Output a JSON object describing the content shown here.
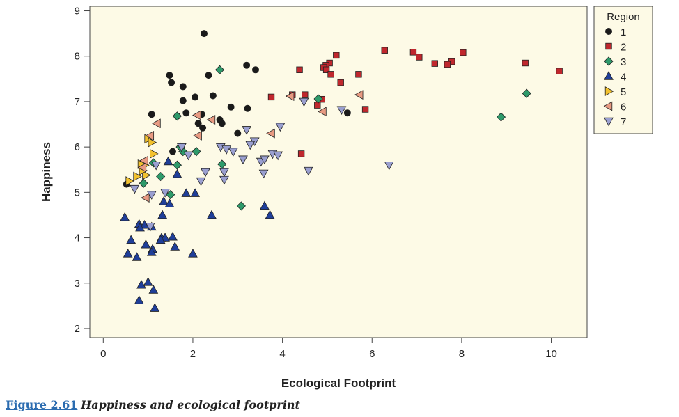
{
  "chart_data": {
    "type": "scatter",
    "title": "",
    "xlabel": "Ecological Footprint",
    "ylabel": "Happiness",
    "xlim": [
      -0.3,
      10.8
    ],
    "ylim": [
      1.8,
      9.1
    ],
    "xticks": [
      0,
      2,
      4,
      6,
      8,
      10
    ],
    "yticks": [
      2,
      3,
      4,
      5,
      6,
      7,
      8,
      9
    ],
    "legend": {
      "title": "Region",
      "position": "top-right outside"
    },
    "series": [
      {
        "name": "1",
        "marker": "circle",
        "color": "#1a1a1a",
        "points": [
          [
            2.25,
            8.5
          ],
          [
            3.2,
            7.8
          ],
          [
            3.4,
            7.7
          ],
          [
            1.48,
            7.58
          ],
          [
            2.35,
            7.58
          ],
          [
            1.52,
            7.42
          ],
          [
            1.78,
            7.33
          ],
          [
            2.05,
            7.1
          ],
          [
            2.45,
            7.13
          ],
          [
            1.78,
            7.02
          ],
          [
            1.08,
            6.72
          ],
          [
            1.85,
            6.75
          ],
          [
            2.2,
            6.72
          ],
          [
            1.65,
            6.68
          ],
          [
            2.85,
            6.88
          ],
          [
            3.22,
            6.85
          ],
          [
            5.45,
            6.75
          ],
          [
            2.12,
            6.52
          ],
          [
            2.6,
            6.6
          ],
          [
            2.65,
            6.52
          ],
          [
            2.22,
            6.42
          ],
          [
            3.0,
            6.3
          ],
          [
            1.55,
            5.9
          ],
          [
            0.52,
            5.18
          ]
        ]
      },
      {
        "name": "2",
        "marker": "square",
        "color": "#c0272d",
        "points": [
          [
            6.28,
            8.13
          ],
          [
            6.92,
            8.09
          ],
          [
            7.05,
            7.98
          ],
          [
            8.03,
            8.08
          ],
          [
            7.78,
            7.88
          ],
          [
            7.4,
            7.84
          ],
          [
            7.68,
            7.82
          ],
          [
            5.2,
            8.02
          ],
          [
            5.05,
            7.85
          ],
          [
            4.97,
            7.8
          ],
          [
            4.92,
            7.75
          ],
          [
            4.98,
            7.7
          ],
          [
            5.08,
            7.6
          ],
          [
            5.7,
            7.6
          ],
          [
            4.38,
            7.7
          ],
          [
            5.3,
            7.42
          ],
          [
            9.42,
            7.85
          ],
          [
            10.18,
            7.67
          ],
          [
            3.75,
            7.1
          ],
          [
            4.22,
            7.15
          ],
          [
            4.5,
            7.15
          ],
          [
            4.88,
            7.05
          ],
          [
            4.78,
            6.92
          ],
          [
            5.85,
            6.83
          ],
          [
            4.42,
            5.85
          ]
        ]
      },
      {
        "name": "3",
        "marker": "diamond",
        "color": "#2e9a6a",
        "points": [
          [
            2.6,
            7.7
          ],
          [
            4.8,
            7.06
          ],
          [
            9.45,
            7.18
          ],
          [
            8.88,
            6.66
          ],
          [
            1.65,
            6.68
          ],
          [
            1.72,
            6.0
          ],
          [
            1.78,
            5.9
          ],
          [
            2.08,
            5.9
          ],
          [
            1.12,
            5.65
          ],
          [
            1.65,
            5.6
          ],
          [
            2.65,
            5.62
          ],
          [
            1.28,
            5.35
          ],
          [
            0.9,
            5.2
          ],
          [
            1.5,
            4.95
          ],
          [
            3.08,
            4.7
          ]
        ]
      },
      {
        "name": "4",
        "marker": "triangle-up",
        "color": "#1f3e99",
        "points": [
          [
            0.48,
            4.45
          ],
          [
            0.8,
            4.3
          ],
          [
            0.92,
            4.28
          ],
          [
            0.82,
            4.22
          ],
          [
            1.08,
            4.24
          ],
          [
            0.62,
            3.95
          ],
          [
            1.3,
            4.0
          ],
          [
            1.38,
            4.0
          ],
          [
            1.28,
            3.95
          ],
          [
            1.55,
            4.02
          ],
          [
            1.6,
            3.8
          ],
          [
            0.95,
            3.85
          ],
          [
            1.1,
            3.75
          ],
          [
            1.08,
            3.68
          ],
          [
            0.55,
            3.65
          ],
          [
            0.75,
            3.57
          ],
          [
            2.0,
            3.65
          ],
          [
            1.35,
            4.8
          ],
          [
            1.48,
            4.75
          ],
          [
            1.32,
            4.5
          ],
          [
            1.85,
            4.98
          ],
          [
            2.05,
            4.98
          ],
          [
            2.42,
            4.5
          ],
          [
            3.6,
            4.7
          ],
          [
            3.72,
            4.5
          ],
          [
            1.45,
            5.68
          ],
          [
            1.65,
            5.4
          ],
          [
            0.85,
            2.96
          ],
          [
            1.0,
            3.02
          ],
          [
            1.12,
            2.85
          ],
          [
            0.8,
            2.62
          ],
          [
            1.15,
            2.45
          ]
        ]
      },
      {
        "name": "5",
        "marker": "triangle-right",
        "color": "#f2c12e",
        "points": [
          [
            0.58,
            5.25
          ],
          [
            0.75,
            5.35
          ],
          [
            0.95,
            5.38
          ],
          [
            0.88,
            5.48
          ],
          [
            0.92,
            5.6
          ],
          [
            0.85,
            5.62
          ],
          [
            1.12,
            5.85
          ],
          [
            1.0,
            6.18
          ],
          [
            1.08,
            6.1
          ]
        ]
      },
      {
        "name": "6",
        "marker": "triangle-left",
        "color": "#e89a82",
        "points": [
          [
            4.18,
            7.12
          ],
          [
            5.72,
            7.15
          ],
          [
            4.9,
            6.78
          ],
          [
            2.1,
            6.7
          ],
          [
            2.42,
            6.6
          ],
          [
            1.2,
            6.52
          ],
          [
            1.05,
            6.25
          ],
          [
            2.12,
            6.25
          ],
          [
            3.75,
            6.3
          ],
          [
            0.92,
            5.7
          ],
          [
            0.88,
            5.55
          ],
          [
            0.95,
            4.88
          ]
        ]
      },
      {
        "name": "7",
        "marker": "triangle-down",
        "color": "#9a9fd0",
        "points": [
          [
            4.48,
            7.0
          ],
          [
            5.32,
            6.82
          ],
          [
            3.95,
            6.45
          ],
          [
            3.2,
            6.38
          ],
          [
            3.38,
            6.13
          ],
          [
            3.28,
            6.05
          ],
          [
            2.62,
            6.0
          ],
          [
            2.75,
            5.95
          ],
          [
            1.75,
            6.0
          ],
          [
            1.9,
            5.82
          ],
          [
            2.9,
            5.9
          ],
          [
            3.12,
            5.73
          ],
          [
            3.52,
            5.68
          ],
          [
            3.6,
            5.73
          ],
          [
            3.78,
            5.85
          ],
          [
            3.9,
            5.82
          ],
          [
            6.38,
            5.6
          ],
          [
            1.18,
            5.6
          ],
          [
            2.28,
            5.45
          ],
          [
            3.58,
            5.42
          ],
          [
            4.58,
            5.48
          ],
          [
            2.7,
            5.45
          ],
          [
            2.18,
            5.25
          ],
          [
            2.7,
            5.28
          ],
          [
            1.38,
            5.0
          ],
          [
            0.7,
            5.08
          ],
          [
            1.08,
            4.95
          ],
          [
            1.05,
            4.25
          ]
        ]
      }
    ]
  },
  "caption": {
    "label": "Figure 2.61",
    "text": "Happiness and ecological footprint"
  }
}
